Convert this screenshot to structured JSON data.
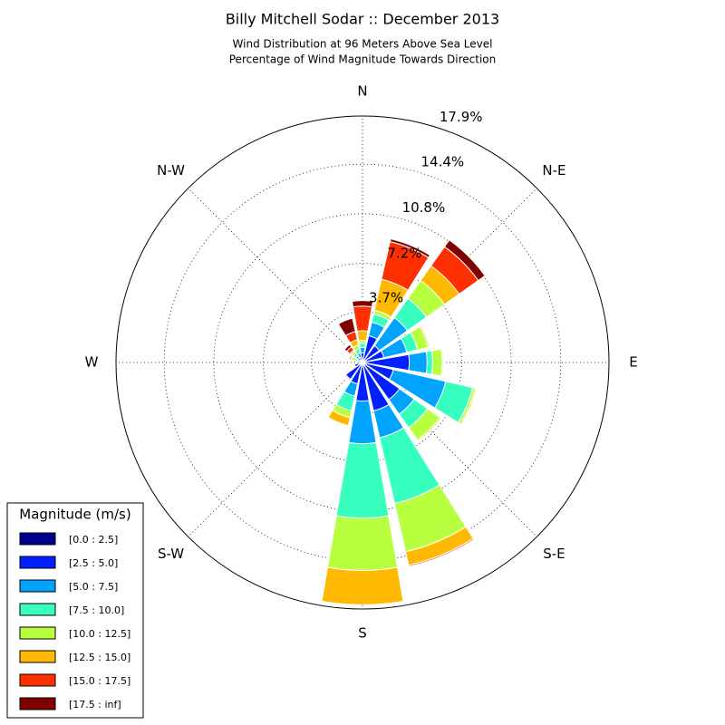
{
  "chart_data": {
    "type": "windrose",
    "title": "Billy Mitchell Sodar :: December 2013",
    "subtitle": [
      "Wind Distribution at 96 Meters Above Sea Level",
      "Percentage of Wind Magnitude Towards Direction"
    ],
    "angle_ticks": [
      "N",
      "N-E",
      "E",
      "S-E",
      "S",
      "S-W",
      "W",
      "N-W"
    ],
    "ylim": [
      0,
      17.9
    ],
    "yticks": [
      {
        "value": 3.7,
        "label": "3.7%"
      },
      {
        "value": 7.2,
        "label": "7.2%"
      },
      {
        "value": 10.8,
        "label": "10.8%"
      },
      {
        "value": 14.4,
        "label": "14.4%"
      },
      {
        "value": 17.9,
        "label": "17.9%"
      }
    ],
    "grid": true,
    "legend_title": "Magnitude (m/s)",
    "legend_position": "lower left",
    "series": [
      {
        "name": "[0.0 : 2.5]",
        "color": "#00008f",
        "values": [
          0.1,
          0.1,
          0.1,
          0.1,
          0.1,
          0.1,
          0.1,
          0.1,
          0.1,
          0.1,
          0.1,
          0.1,
          0.1,
          0.1,
          0.1,
          0.1
        ]
      },
      {
        "name": "[2.5 : 5.0]",
        "color": "#0020ff",
        "values": [
          0.6,
          1.9,
          1.4,
          1.5,
          3.3,
          2.2,
          3.2,
          3.5,
          2.7,
          1.5,
          1.4,
          0.5,
          0.3,
          0.2,
          0.3,
          0.3
        ]
      },
      {
        "name": "[5.0 : 7.5]",
        "color": "#00a4ff",
        "values": [
          0.4,
          1.0,
          2.5,
          1.7,
          1.3,
          3.9,
          1.3,
          2.0,
          3.1,
          0.9,
          0.1,
          0,
          0,
          0.1,
          0.2,
          0.3
        ]
      },
      {
        "name": "[7.5 : 10.0]",
        "color": "#36ffc0",
        "values": [
          0.3,
          0.6,
          1.7,
          0.8,
          0.4,
          2.0,
          1.2,
          4.9,
          5.4,
          1.1,
          0,
          0,
          0,
          0.1,
          0.2,
          0.3
        ]
      },
      {
        "name": "[10.0 : 12.5]",
        "color": "#b8ff3f",
        "values": [
          0.2,
          0.3,
          1.6,
          0.8,
          0.7,
          0.2,
          1.1,
          3.6,
          3.8,
          0.5,
          0,
          0,
          0,
          0.3,
          0.2,
          0.3
        ]
      },
      {
        "name": "[12.5 : 15.0]",
        "color": "#ffb900",
        "values": [
          0.7,
          2.3,
          1.3,
          0.1,
          0,
          0.1,
          0.1,
          1.0,
          2.5,
          0.6,
          0,
          0,
          0,
          0.1,
          0.1,
          0.4
        ]
      },
      {
        "name": "[15.0 : 17.5]",
        "color": "#ff3000",
        "values": [
          1.8,
          2.8,
          1.7,
          0,
          0,
          0,
          0,
          0.1,
          0,
          0,
          0,
          0,
          0,
          0.1,
          0.3,
          0.6
        ]
      },
      {
        "name": "[17.5 : inf]",
        "color": "#800000",
        "values": [
          0.4,
          0.2,
          0.6,
          0,
          0,
          0,
          0,
          0,
          0,
          0,
          0,
          0,
          0,
          0,
          0.2,
          1.0
        ]
      }
    ]
  }
}
